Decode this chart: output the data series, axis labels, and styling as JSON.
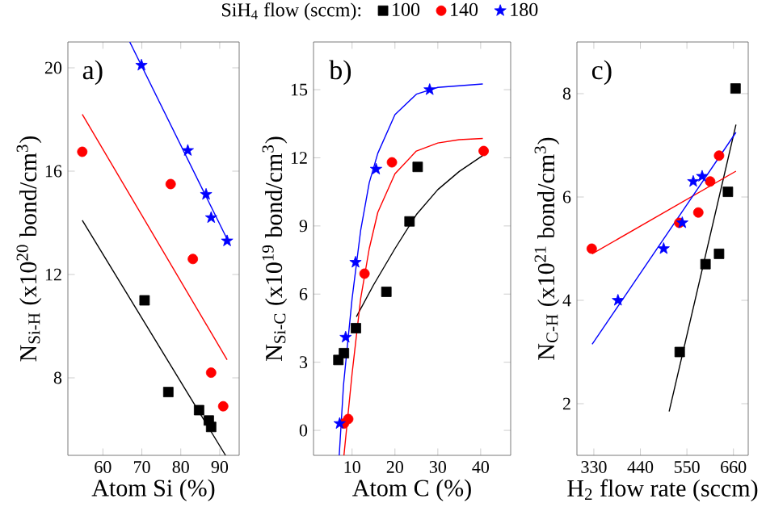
{
  "chart_data": [
    {
      "type": "scatter",
      "xlabel": "Atom Si (%)",
      "ylabel": "N$_{Si-H}$ (x10$^{20}$ bond/cm$^{3}$)",
      "annotations": [
        "a)"
      ],
      "legend_title": "SiH$_{4}$ flow (sccm):",
      "legend": "top",
      "xlim": [
        51,
        95
      ],
      "ylim": [
        5,
        21
      ],
      "xticks": [
        60,
        70,
        80,
        90
      ],
      "yticks": [
        8,
        12,
        16,
        20
      ],
      "series": [
        {
          "name": "100",
          "color": "#000000",
          "marker": "square",
          "x": [
            70.7,
            76.8,
            84.7,
            87.2,
            87.8
          ],
          "values": [
            11.0,
            7.45,
            6.75,
            6.35,
            6.1
          ]
        },
        {
          "name": "140",
          "color": "#ff0000",
          "marker": "circle",
          "x": [
            54.7,
            77.4,
            83.1,
            87.8,
            90.9
          ],
          "values": [
            16.75,
            15.5,
            12.6,
            8.2,
            6.9
          ]
        },
        {
          "name": "180",
          "color": "#0000ff",
          "marker": "star",
          "x": [
            69.9,
            81.8,
            86.5,
            87.8,
            91.9
          ],
          "values": [
            20.1,
            16.8,
            15.1,
            14.2,
            13.3
          ]
        },
        {
          "type": "line",
          "color": "#000000",
          "x": [
            54.7,
            91.5
          ],
          "values": [
            14.1,
            5.0
          ]
        },
        {
          "type": "line",
          "color": "#ff0000",
          "x": [
            54.7,
            91.9
          ],
          "values": [
            18.2,
            8.7
          ]
        },
        {
          "type": "line",
          "color": "#0000ff",
          "x": [
            66.9,
            92.3
          ],
          "values": [
            21.0,
            13.25
          ]
        }
      ]
    },
    {
      "type": "scatter",
      "xlabel": "Atom C (%)",
      "ylabel": "N$_{Si-C}$ (x10$^{19}$ bond/cm$^{3}$)",
      "annotations": [
        "b)"
      ],
      "xlim": [
        1,
        47
      ],
      "ylim": [
        -1.1,
        17.1
      ],
      "xticks": [
        10,
        20,
        30,
        40
      ],
      "yticks": [
        0,
        3,
        6,
        9,
        12,
        15
      ],
      "series": [
        {
          "color": "#000000",
          "marker": "square",
          "x": [
            6.8,
            8.1,
            10.9,
            18.0,
            23.4,
            25.3
          ],
          "values": [
            3.1,
            3.4,
            4.5,
            6.1,
            9.2,
            11.6
          ]
        },
        {
          "color": "#ff0000",
          "marker": "circle",
          "x": [
            8.1,
            9.1,
            12.9,
            19.3,
            40.7
          ],
          "values": [
            0.3,
            0.5,
            6.9,
            11.8,
            12.3
          ]
        },
        {
          "color": "#0000ff",
          "marker": "star",
          "x": [
            7.1,
            8.5,
            10.8,
            15.6,
            28.1
          ],
          "values": [
            0.3,
            4.1,
            7.4,
            11.5,
            15.0
          ]
        },
        {
          "type": "line",
          "color": "#000000",
          "x": [
            11,
            15,
            20,
            25,
            30,
            35,
            40.5
          ],
          "values": [
            5.0,
            6.4,
            8.0,
            9.5,
            10.6,
            11.4,
            12.1
          ]
        },
        {
          "type": "line",
          "color": "#ff0000",
          "x": [
            8.1,
            10,
            12,
            14,
            16,
            20,
            25,
            30,
            35,
            40.5
          ],
          "values": [
            -1.1,
            2.5,
            5.8,
            8.0,
            9.6,
            11.3,
            12.3,
            12.65,
            12.8,
            12.85
          ]
        },
        {
          "type": "line",
          "color": "#0000ff",
          "x": [
            7.0,
            8,
            10,
            12,
            14,
            16,
            20,
            25,
            30,
            40.5
          ],
          "values": [
            -1.1,
            2.0,
            5.8,
            8.8,
            10.9,
            12.2,
            13.9,
            14.8,
            15.1,
            15.25
          ]
        }
      ]
    },
    {
      "type": "scatter",
      "xlabel": "H$_{2}$ flow rate (sccm)",
      "ylabel": "N$_{C-H}$ (x10$^{21}$ bond/cm$^{3}$)",
      "annotations": [
        "c)"
      ],
      "xlim": [
        290,
        695
      ],
      "ylim": [
        1,
        9
      ],
      "xticks": [
        330,
        440,
        550,
        660
      ],
      "yticks": [
        2,
        4,
        6,
        8
      ],
      "series": [
        {
          "color": "#000000",
          "marker": "square",
          "x": [
            533,
            594,
            626,
            647,
            665
          ],
          "values": [
            3.0,
            4.7,
            4.9,
            6.1,
            8.1
          ]
        },
        {
          "color": "#ff0000",
          "marker": "circle",
          "x": [
            325,
            532,
            577,
            605,
            626
          ],
          "values": [
            5.0,
            5.5,
            5.7,
            6.3,
            6.8
          ]
        },
        {
          "color": "#0000ff",
          "marker": "star",
          "x": [
            387,
            495,
            539,
            565,
            586
          ],
          "values": [
            4.0,
            5.0,
            5.5,
            6.3,
            6.4
          ]
        },
        {
          "type": "line",
          "color": "#000000",
          "x": [
            508,
            666
          ],
          "values": [
            1.85,
            7.4
          ]
        },
        {
          "type": "line",
          "color": "#ff0000",
          "x": [
            326,
            666
          ],
          "values": [
            4.9,
            6.5
          ]
        },
        {
          "type": "line",
          "color": "#0000ff",
          "x": [
            326,
            666
          ],
          "values": [
            3.15,
            7.25
          ]
        }
      ]
    }
  ]
}
